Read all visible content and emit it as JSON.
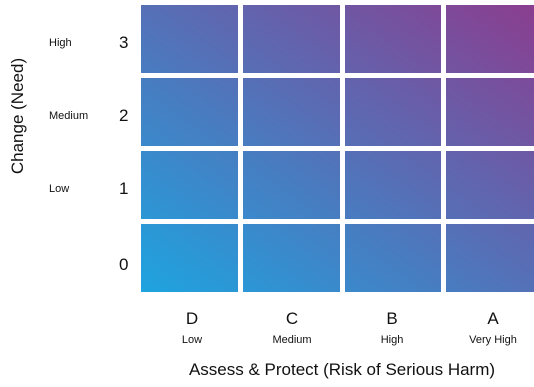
{
  "chart_data": {
    "type": "heatmap",
    "title": "",
    "xlabel": "Assess & Protect (Risk of Serious Harm)",
    "ylabel": "Change (Need)",
    "x_categories": [
      {
        "letter": "D",
        "label": "Low"
      },
      {
        "letter": "C",
        "label": "Medium"
      },
      {
        "letter": "B",
        "label": "High"
      },
      {
        "letter": "A",
        "label": "Very High"
      }
    ],
    "y_categories": [
      {
        "value": "3",
        "label": "High"
      },
      {
        "value": "2",
        "label": "Medium"
      },
      {
        "value": "1",
        "label": "Low"
      },
      {
        "value": "0",
        "label": ""
      }
    ],
    "colors": {
      "low": "#1ea4e0",
      "high": "#8c3c8e"
    },
    "legend": "none",
    "grid": true
  }
}
